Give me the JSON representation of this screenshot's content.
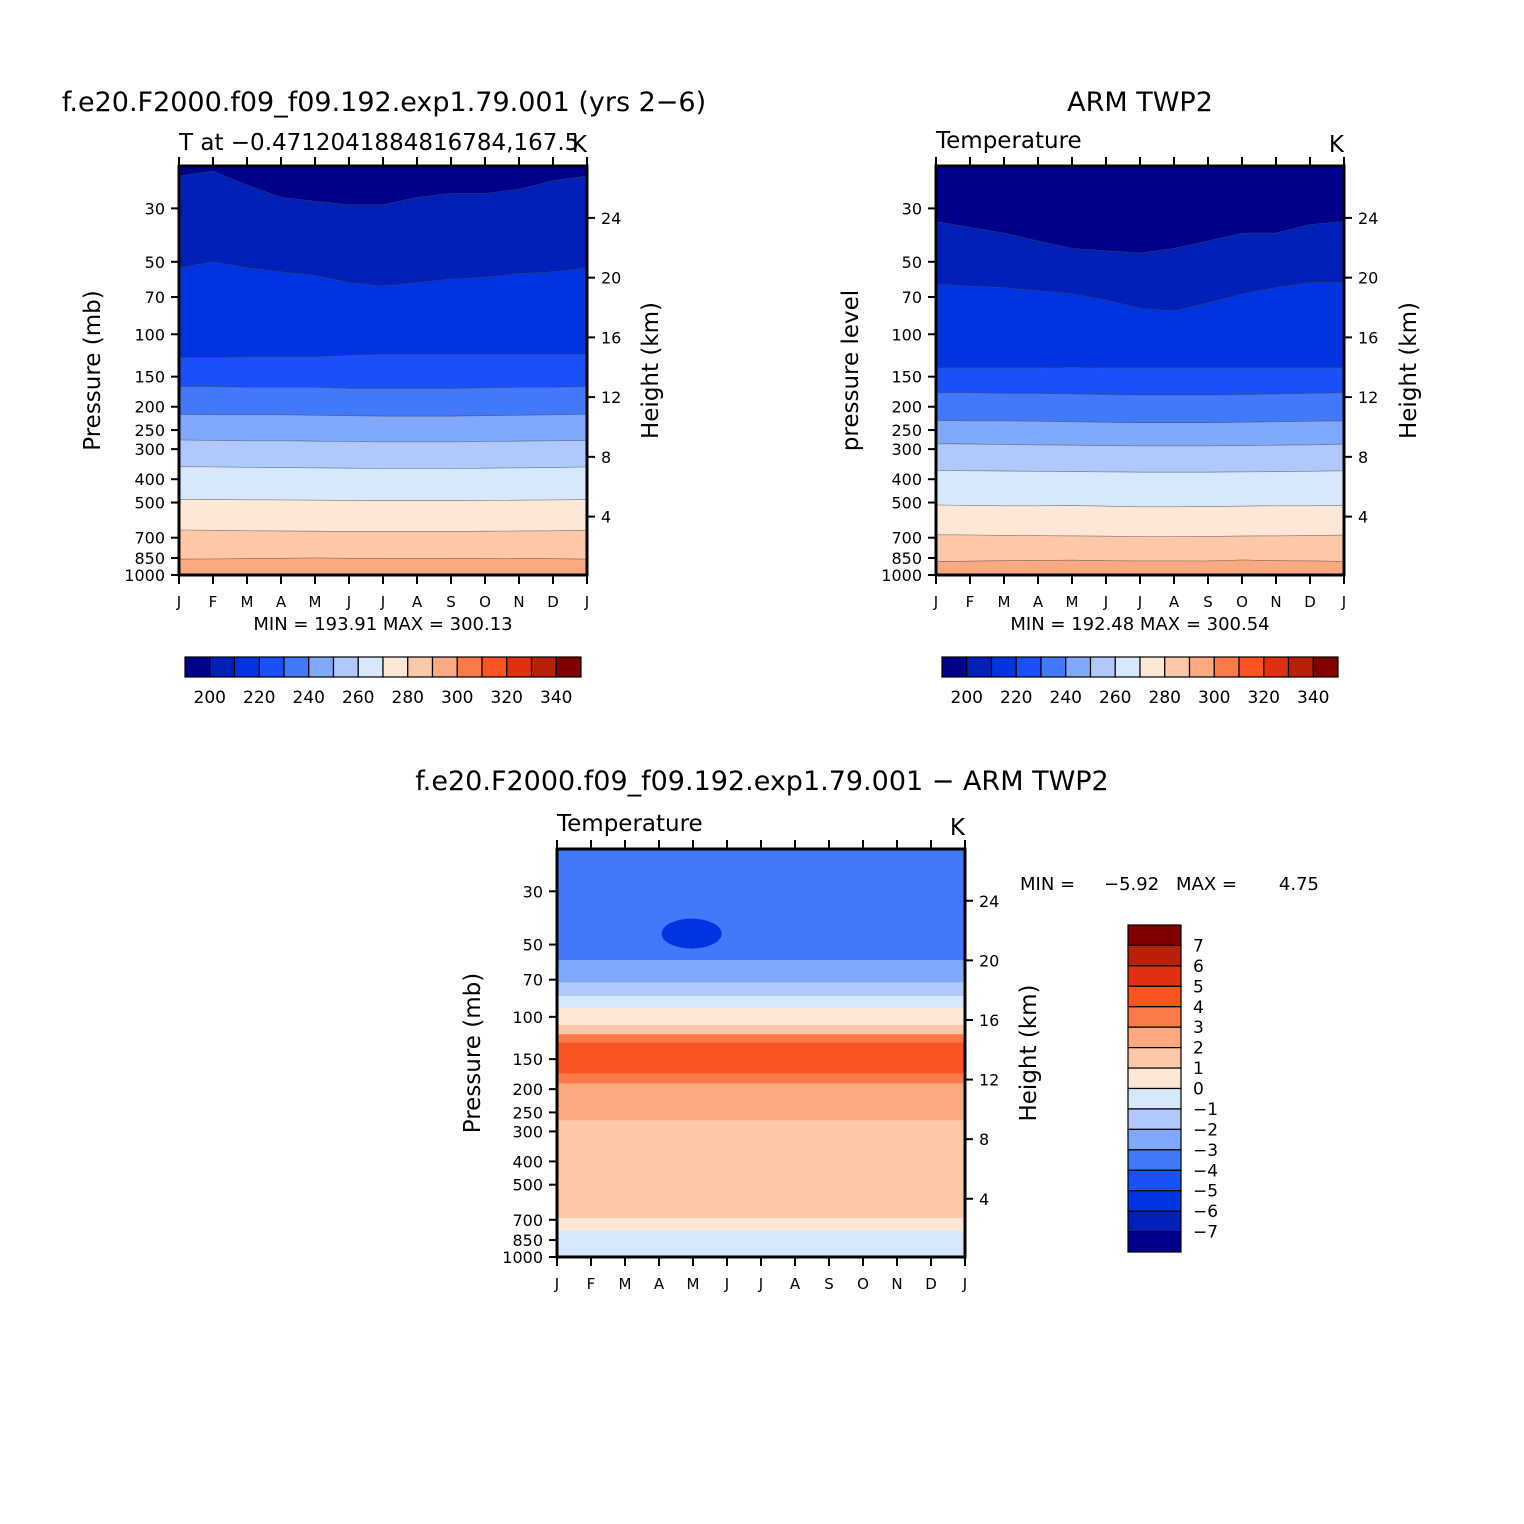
{
  "chart_data": [
    {
      "type": "heatmap",
      "title": "f.e20.F2000.f09_f09.192.exp1.79.001 (yrs 2−6)",
      "subtitle": "T at −0.4712041884816784,167.5",
      "units": "K",
      "xlabel": "",
      "ylabel": "Pressure (mb)",
      "y2label": "Height (km)",
      "x_ticks": [
        "J",
        "F",
        "M",
        "A",
        "M",
        "J",
        "J",
        "A",
        "S",
        "O",
        "N",
        "D",
        "J"
      ],
      "y_ticks": [
        30,
        50,
        70,
        100,
        150,
        200,
        250,
        300,
        400,
        500,
        700,
        850,
        1000
      ],
      "y2_ticks": [
        24,
        20,
        16,
        12,
        8,
        4
      ],
      "ylim": [
        1000,
        20
      ],
      "y_scale": "log",
      "stats": "MIN = 193.91  MAX = 300.13",
      "levels": [
        195,
        205,
        215,
        225,
        235,
        245,
        255,
        265,
        275,
        285,
        295
      ],
      "colorbar_labels": [
        "200",
        "220",
        "240",
        "260",
        "280",
        "300",
        "320",
        "340"
      ],
      "approx_boundaries_mb": [
        [
          22,
          21,
          24,
          27,
          28,
          29,
          29,
          27,
          26,
          26,
          25,
          23,
          22
        ],
        [
          53,
          50,
          53,
          55,
          57,
          61,
          63,
          61,
          59,
          58,
          56,
          55,
          53
        ],
        [
          125,
          125,
          124,
          124,
          124,
          122,
          121,
          121,
          121,
          121,
          121,
          121,
          121
        ],
        [
          165,
          165,
          166,
          166,
          166,
          168,
          168,
          168,
          168,
          167,
          166,
          166,
          165
        ],
        [
          215,
          216,
          216,
          216,
          217,
          218,
          219,
          219,
          219,
          218,
          217,
          216,
          215
        ],
        [
          275,
          276,
          277,
          277,
          278,
          279,
          280,
          280,
          280,
          279,
          278,
          277,
          276
        ],
        [
          355,
          356,
          357,
          358,
          359,
          360,
          361,
          361,
          361,
          360,
          359,
          358,
          356
        ],
        [
          485,
          486,
          487,
          488,
          489,
          490,
          491,
          491,
          491,
          490,
          489,
          488,
          486
        ],
        [
          650,
          652,
          655,
          657,
          658,
          660,
          660,
          660,
          660,
          658,
          657,
          655,
          652
        ],
        [
          860,
          858,
          855,
          852,
          850,
          852,
          853,
          853,
          853,
          852,
          853,
          856,
          860
        ],
        [
          995,
          995,
          995,
          995,
          995,
          995,
          995,
          995,
          995,
          995,
          995,
          995,
          995
        ]
      ],
      "colors": [
        "#00008a",
        "#0020b8",
        "#0034e0",
        "#1a50f8",
        "#4278fa",
        "#80a8fc",
        "#b0c8fc",
        "#d8e8fc",
        "#fde8d8",
        "#fdc8a8",
        "#fca880",
        "#f57848"
      ]
    },
    {
      "type": "heatmap",
      "title": "ARM TWP2",
      "subtitle": "Temperature",
      "units": "K",
      "xlabel": "",
      "ylabel": "pressure level",
      "y2label": "Height (km)",
      "x_ticks": [
        "J",
        "F",
        "M",
        "A",
        "M",
        "J",
        "J",
        "A",
        "S",
        "O",
        "N",
        "D",
        "J"
      ],
      "y_ticks": [
        30,
        50,
        70,
        100,
        150,
        200,
        250,
        300,
        400,
        500,
        700,
        850,
        1000
      ],
      "y2_ticks": [
        24,
        20,
        16,
        12,
        8,
        4
      ],
      "ylim": [
        1000,
        20
      ],
      "y_scale": "log",
      "stats": "MIN = 192.48  MAX = 300.54",
      "levels": [
        195,
        205,
        215,
        225,
        235,
        245,
        255,
        265,
        275,
        285,
        295
      ],
      "colorbar_labels": [
        "200",
        "220",
        "240",
        "260",
        "280",
        "300",
        "320",
        "340"
      ],
      "approx_boundaries_mb": [
        [
          34,
          36,
          38,
          41,
          44,
          45,
          46,
          44,
          41,
          38,
          38,
          35,
          34
        ],
        [
          62,
          63,
          64,
          66,
          68,
          72,
          78,
          80,
          74,
          68,
          64,
          61,
          61
        ],
        [
          138,
          138,
          138,
          138,
          137,
          138,
          138,
          138,
          138,
          138,
          138,
          138,
          138
        ],
        [
          175,
          175,
          176,
          176,
          177,
          178,
          179,
          179,
          179,
          178,
          177,
          176,
          175
        ],
        [
          228,
          229,
          229,
          230,
          231,
          232,
          233,
          233,
          233,
          232,
          231,
          230,
          229
        ],
        [
          285,
          286,
          287,
          288,
          289,
          290,
          291,
          291,
          291,
          290,
          289,
          288,
          286
        ],
        [
          368,
          369,
          370,
          371,
          372,
          373,
          374,
          374,
          374,
          373,
          372,
          371,
          369
        ],
        [
          512,
          514,
          516,
          516,
          515,
          518,
          521,
          521,
          520,
          518,
          516,
          516,
          514
        ],
        [
          680,
          682,
          685,
          687,
          688,
          690,
          692,
          692,
          691,
          689,
          688,
          686,
          683
        ],
        [
          880,
          876,
          872,
          870,
          868,
          872,
          875,
          875,
          874,
          866,
          872,
          874,
          878
        ],
        [
          995,
          995,
          995,
          995,
          995,
          995,
          995,
          995,
          995,
          995,
          995,
          995,
          995
        ]
      ],
      "colors": [
        "#00008a",
        "#0020b8",
        "#0034e0",
        "#1a50f8",
        "#4278fa",
        "#80a8fc",
        "#b0c8fc",
        "#d8e8fc",
        "#fde8d8",
        "#fdc8a8",
        "#fca880",
        "#f57848"
      ]
    },
    {
      "type": "heatmap",
      "title": "f.e20.F2000.f09_f09.192.exp1.79.001 − ARM TWP2",
      "subtitle": "Temperature",
      "units": "K",
      "xlabel": "",
      "ylabel": "Pressure (mb)",
      "y2label": "Height (km)",
      "x_ticks": [
        "J",
        "F",
        "M",
        "A",
        "M",
        "J",
        "J",
        "A",
        "S",
        "O",
        "N",
        "D",
        "J"
      ],
      "y_ticks": [
        30,
        50,
        70,
        100,
        150,
        200,
        250,
        300,
        400,
        500,
        700,
        850,
        1000
      ],
      "y2_ticks": [
        24,
        20,
        16,
        12,
        8,
        4
      ],
      "ylim": [
        1000,
        20
      ],
      "y_scale": "log",
      "stats_label_min": "MIN =",
      "stats_value_min": "−5.92",
      "stats_label_max": "MAX =",
      "stats_value_max": "4.75",
      "colorbar_labels": [
        "7",
        "6",
        "5",
        "4",
        "3",
        "2",
        "1",
        "0",
        "−1",
        "−2",
        "−3",
        "−4",
        "−5",
        "−6",
        "−7"
      ],
      "approx_bands_mb": [
        {
          "value": -5.5,
          "top": 20,
          "bottom": 65,
          "color": "#1a50f8"
        },
        {
          "value": -4.5,
          "top": 20,
          "bottom": 58,
          "color": "#4278fa"
        },
        {
          "value": -2.5,
          "top": 58,
          "bottom": 72,
          "color": "#80a8fc"
        },
        {
          "value": -1.5,
          "top": 72,
          "bottom": 82,
          "color": "#b0c8fc"
        },
        {
          "value": -0.5,
          "top": 82,
          "bottom": 92,
          "color": "#d8e8fc"
        },
        {
          "value": 0.5,
          "top": 92,
          "bottom": 108,
          "color": "#fde8d8"
        },
        {
          "value": 1.5,
          "top": 108,
          "bottom": 118,
          "color": "#fdc8a8"
        },
        {
          "value": 3.5,
          "top": 118,
          "bottom": 190,
          "color": "#fc7a48"
        },
        {
          "value": 4.5,
          "top": 128,
          "bottom": 172,
          "color": "#fa5420"
        },
        {
          "value": 2.5,
          "top": 190,
          "bottom": 270,
          "color": "#fca880"
        },
        {
          "value": 1.5,
          "top": 270,
          "bottom": 690,
          "color": "#fdc8a8"
        },
        {
          "value": 0.5,
          "top": 690,
          "bottom": 1000,
          "color": "#fde8d8"
        },
        {
          "value": -0.5,
          "top": 780,
          "bottom": 1000,
          "color": "#d8e8fc"
        }
      ],
      "colors": [
        "#00008a",
        "#0020b8",
        "#0034e0",
        "#1a50f8",
        "#4278fa",
        "#80a8fc",
        "#b0c8fc",
        "#d8e8fc",
        "#fde8d8",
        "#fdc8a8",
        "#fca880",
        "#fc7a48",
        "#fa5420",
        "#e03010",
        "#b82008",
        "#800000"
      ]
    }
  ]
}
